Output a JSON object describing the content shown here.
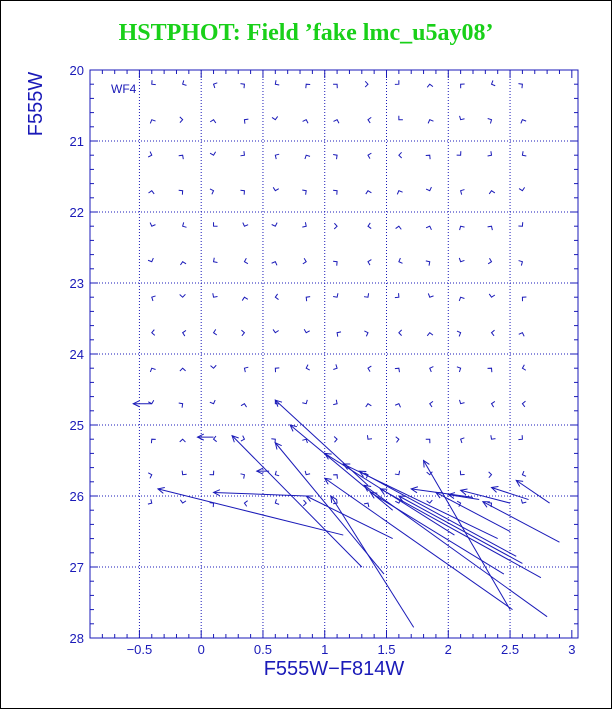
{
  "chart_data": {
    "type": "scatter",
    "title": "HSTPHOT: Field ’fake lmc_u5ay08’",
    "annotation": "WF4",
    "xlabel": "F555W−F814W",
    "ylabel": "F555W",
    "xlim": [
      -0.9,
      3.05
    ],
    "ylim": [
      28,
      20
    ],
    "y_inverted": true,
    "grid": true,
    "grid_style": "dotted",
    "xticks": [
      -0.5,
      0,
      0.5,
      1,
      1.5,
      2,
      2.5,
      3
    ],
    "xtick_labels": [
      "−0.5",
      "0",
      "0.5",
      "1",
      "1.5",
      "2",
      "2.5",
      "3"
    ],
    "yticks": [
      20,
      21,
      22,
      23,
      24,
      25,
      26,
      27,
      28
    ],
    "ytick_labels": [
      "20",
      "21",
      "22",
      "23",
      "24",
      "25",
      "26",
      "27",
      "28"
    ],
    "grid_x": [
      -0.5,
      0,
      0.5,
      1,
      1.5,
      2,
      2.5
    ],
    "grid_y": [
      21,
      22,
      23,
      24,
      25,
      26,
      27
    ],
    "input_colors": [
      -0.4,
      -0.15,
      0.1,
      0.35,
      0.6,
      0.85,
      1.1,
      1.35,
      1.6,
      1.85,
      2.1,
      2.35,
      2.6
    ],
    "input_mags": [
      20.2,
      20.7,
      21.2,
      21.7,
      22.2,
      22.7,
      23.2,
      23.7,
      24.2,
      24.7,
      25.2,
      25.7,
      26.1
    ],
    "vectors": [
      {
        "x0": 0.6,
        "y0": 24.65,
        "x1": 1.35,
        "y1": 25.85
      },
      {
        "x0": 0.72,
        "y0": 25.0,
        "x1": 1.55,
        "y1": 26.2
      },
      {
        "x0": 0.25,
        "y0": 25.15,
        "x1": 1.3,
        "y1": 27.0
      },
      {
        "x0": 0.6,
        "y0": 25.25,
        "x1": 1.48,
        "y1": 27.1
      },
      {
        "x0": 1.0,
        "y0": 25.4,
        "x1": 2.05,
        "y1": 26.55
      },
      {
        "x0": 1.15,
        "y0": 25.55,
        "x1": 2.4,
        "y1": 26.6
      },
      {
        "x0": 1.28,
        "y0": 25.65,
        "x1": 2.55,
        "y1": 26.85
      },
      {
        "x0": -0.35,
        "y0": 25.9,
        "x1": 1.15,
        "y1": 26.55
      },
      {
        "x0": 0.1,
        "y0": 25.95,
        "x1": 0.85,
        "y1": 26.0
      },
      {
        "x0": 0.85,
        "y0": 26.0,
        "x1": 1.55,
        "y1": 26.6
      },
      {
        "x0": 1.05,
        "y0": 26.0,
        "x1": 1.72,
        "y1": 27.85
      },
      {
        "x0": 1.0,
        "y0": 25.75,
        "x1": 2.52,
        "y1": 27.6
      },
      {
        "x0": 1.32,
        "y0": 25.85,
        "x1": 2.8,
        "y1": 27.7
      },
      {
        "x0": 1.45,
        "y0": 25.9,
        "x1": 2.75,
        "y1": 27.15
      },
      {
        "x0": 1.6,
        "y0": 26.0,
        "x1": 2.6,
        "y1": 26.95
      },
      {
        "x0": 1.8,
        "y0": 25.5,
        "x1": 2.5,
        "y1": 27.6
      },
      {
        "x0": 1.9,
        "y0": 25.95,
        "x1": 2.5,
        "y1": 26.5
      },
      {
        "x0": 2.0,
        "y0": 25.98,
        "x1": 2.25,
        "y1": 26.05
      },
      {
        "x0": 2.1,
        "y0": 25.92,
        "x1": 2.5,
        "y1": 26.1
      },
      {
        "x0": 2.35,
        "y0": 25.88,
        "x1": 2.65,
        "y1": 26.05
      },
      {
        "x0": 2.55,
        "y0": 25.78,
        "x1": 2.82,
        "y1": 26.1
      },
      {
        "x0": 2.28,
        "y0": 26.08,
        "x1": 2.9,
        "y1": 26.65
      },
      {
        "x0": 1.7,
        "y0": 25.9,
        "x1": 2.2,
        "y1": 26.02
      },
      {
        "x0": 1.37,
        "y0": 25.95,
        "x1": 2.45,
        "y1": 27.1
      },
      {
        "x0": -0.55,
        "y0": 24.7,
        "x1": -0.4,
        "y1": 24.7
      },
      {
        "x0": -0.03,
        "y0": 25.17,
        "x1": 0.1,
        "y1": 25.17
      },
      {
        "x0": 0.45,
        "y0": 25.65,
        "x1": 0.55,
        "y1": 25.65
      }
    ]
  },
  "colors": {
    "title": "#19d019",
    "axis": "#1a1ab8",
    "frame": "#000000"
  }
}
